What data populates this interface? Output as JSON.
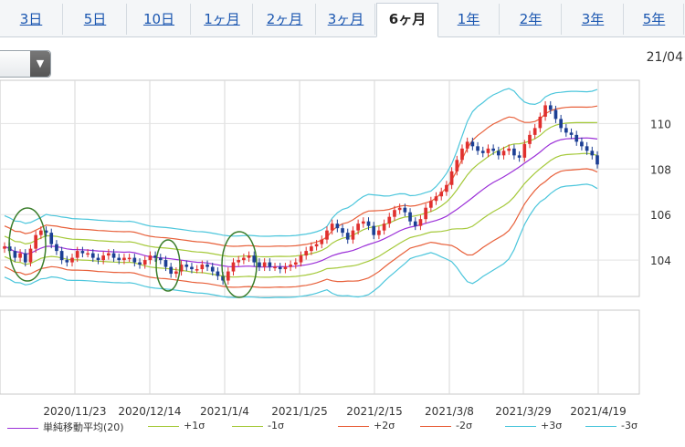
{
  "tabs": [
    {
      "label": "3日",
      "active": false
    },
    {
      "label": "5日",
      "active": false
    },
    {
      "label": "10日",
      "active": false
    },
    {
      "label": "1ヶ月",
      "active": false
    },
    {
      "label": "2ヶ月",
      "active": false
    },
    {
      "label": "3ヶ月",
      "active": false
    },
    {
      "label": "6ヶ月",
      "active": true
    },
    {
      "label": "1年",
      "active": false
    },
    {
      "label": "2年",
      "active": false
    },
    {
      "label": "3年",
      "active": false
    },
    {
      "label": "5年",
      "active": false
    }
  ],
  "dropdown": {
    "icon": "chevron-down-icon"
  },
  "header_date": "21/04",
  "chart_data": {
    "type": "candlestick",
    "y_ticks": [
      104,
      106,
      108,
      110
    ],
    "ylim": [
      102.4,
      111.9
    ],
    "x_tick_labels": [
      "2020/11/23",
      "2020/12/14",
      "2021/1/4",
      "2021/1/25",
      "2021/2/15",
      "2021/3/8",
      "2021/3/29",
      "2021/4/19"
    ],
    "grid": true,
    "legend_placement": "bottom",
    "colors": {
      "up": "#e0302e",
      "down": "#1c3f94",
      "ma": "#9b30d8",
      "s1": "#a5c93a",
      "s2": "#e8603a",
      "s3": "#4cc6dc",
      "annotation": "#3a7d2a"
    },
    "legend": [
      {
        "label": "単純移動平均(20)",
        "color": "#9b30d8"
      },
      {
        "label": "+1σ",
        "color": "#a5c93a"
      },
      {
        "label": "-1σ",
        "color": "#a5c93a"
      },
      {
        "label": "+2σ",
        "color": "#e8603a"
      },
      {
        "label": "-2σ",
        "color": "#e8603a"
      },
      {
        "label": "+3σ",
        "color": "#4cc6dc"
      },
      {
        "label": "-3σ",
        "color": "#4cc6dc"
      }
    ],
    "closes": [
      104.6,
      104.4,
      104.1,
      104.3,
      103.9,
      104.5,
      105.1,
      105.3,
      105.2,
      104.7,
      104.4,
      104.0,
      103.9,
      104.1,
      104.4,
      104.3,
      104.3,
      104.1,
      104.0,
      104.2,
      104.3,
      104.1,
      104.0,
      104.1,
      104.1,
      103.9,
      103.8,
      104.0,
      104.2,
      104.1,
      104.0,
      103.7,
      103.4,
      103.5,
      103.8,
      103.7,
      103.6,
      103.6,
      103.8,
      103.7,
      103.5,
      103.3,
      103.1,
      103.5,
      103.9,
      104.0,
      104.1,
      104.2,
      103.9,
      103.7,
      103.9,
      103.7,
      103.7,
      103.6,
      103.7,
      103.8,
      103.9,
      104.2,
      104.4,
      104.6,
      104.7,
      104.9,
      105.3,
      105.6,
      105.4,
      105.2,
      104.9,
      105.3,
      105.6,
      105.7,
      105.5,
      105.1,
      105.3,
      105.6,
      105.9,
      106.2,
      106.3,
      106.1,
      105.7,
      105.5,
      105.8,
      106.3,
      106.6,
      106.8,
      107.0,
      107.3,
      107.9,
      108.4,
      108.9,
      109.2,
      109.0,
      108.8,
      108.7,
      108.9,
      108.8,
      108.6,
      108.8,
      108.9,
      108.6,
      108.5,
      109.1,
      109.5,
      109.8,
      110.3,
      110.8,
      110.6,
      110.2,
      109.8,
      109.6,
      109.5,
      109.2,
      109.0,
      108.8,
      108.6,
      108.2
    ]
  }
}
